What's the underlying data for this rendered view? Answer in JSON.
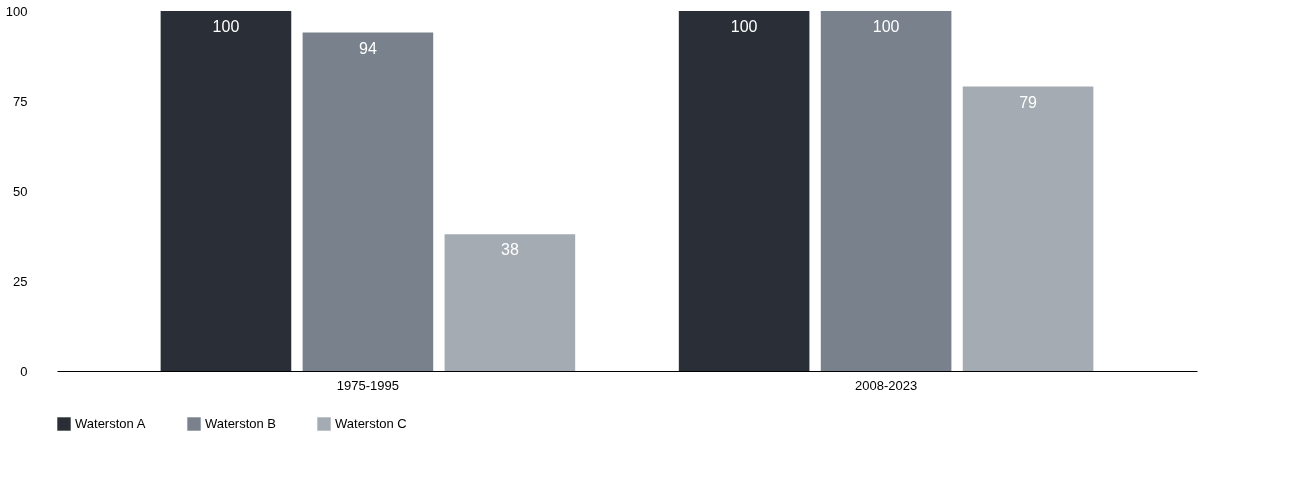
{
  "chart_data": {
    "type": "bar",
    "categories": [
      "1975-1995",
      "2008-2023"
    ],
    "series": [
      {
        "name": "Waterston A",
        "color": "#2a2f37",
        "values": [
          100,
          100
        ]
      },
      {
        "name": "Waterston B",
        "color": "#78818c",
        "values": [
          94,
          100
        ]
      },
      {
        "name": "Waterston C",
        "color": "#a4abb2",
        "values": [
          38,
          79
        ]
      }
    ],
    "ylim": [
      0,
      100
    ],
    "yticks": [
      0,
      25,
      50,
      75,
      100
    ],
    "grid": false,
    "legend": "bottom",
    "data_labels": true
  }
}
